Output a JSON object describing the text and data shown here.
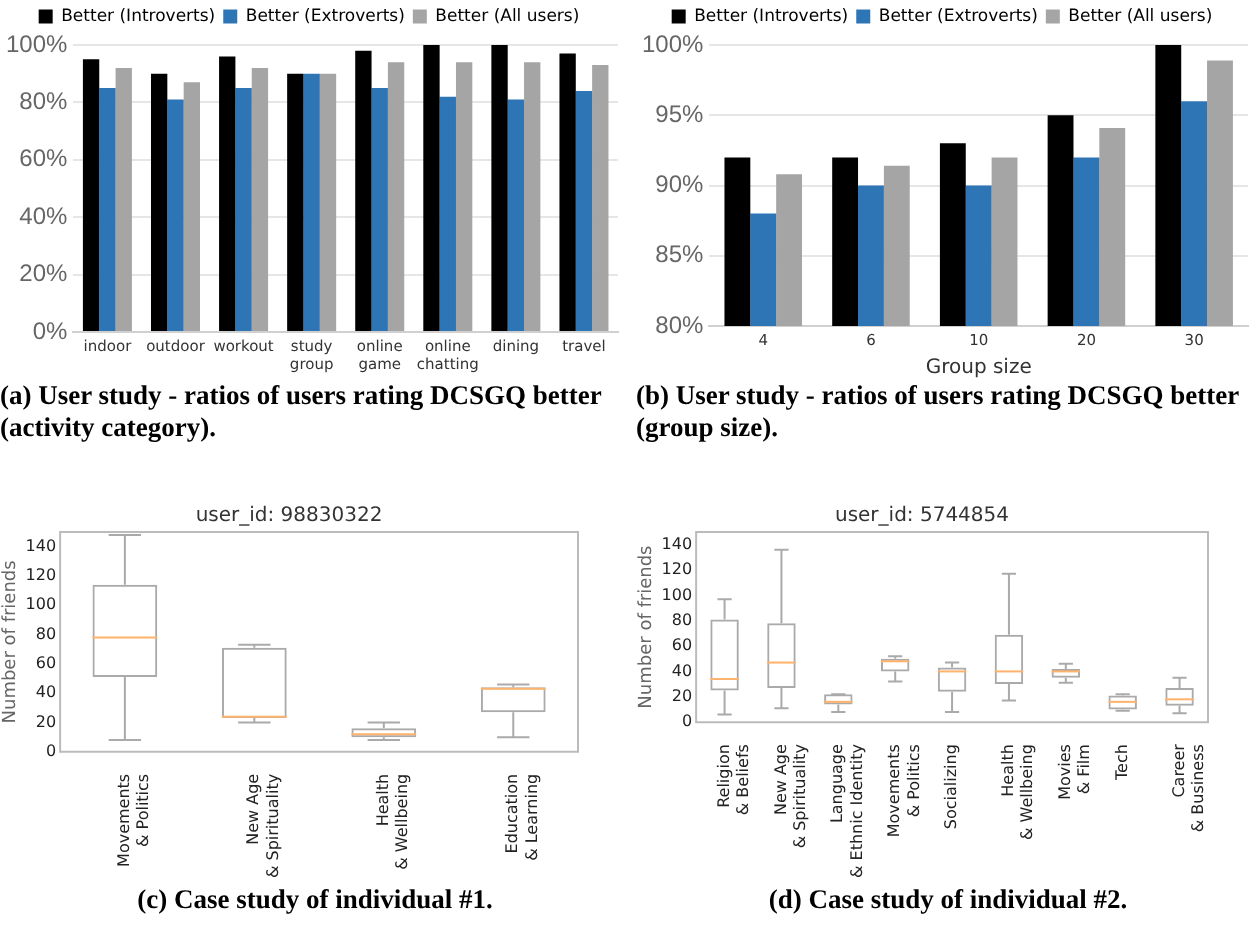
{
  "chart_data": [
    {
      "type": "bar",
      "categories": [
        "indoor",
        "outdoor",
        "workout",
        "study\ngroup",
        "online\ngame",
        "online\nchatting",
        "dining",
        "travel"
      ],
      "series": [
        {
          "name": "Better (Introverts)",
          "color": "#000000",
          "values": [
            95,
            90,
            96,
            90,
            98,
            100,
            100,
            97
          ]
        },
        {
          "name": "Better (Extroverts)",
          "color": "#2e75b6",
          "values": [
            85,
            81,
            85,
            90,
            85,
            82,
            81,
            84
          ]
        },
        {
          "name": "Better (All users)",
          "color": "#a5a5a5",
          "values": [
            92,
            87,
            92,
            90,
            94,
            94,
            94,
            93
          ]
        }
      ],
      "ylim": [
        0,
        100
      ],
      "yticks": [
        {
          "value": 0,
          "label": "0%"
        },
        {
          "value": 20,
          "label": "20%"
        },
        {
          "value": 40,
          "label": "40%"
        },
        {
          "value": 60,
          "label": "60%"
        },
        {
          "value": 80,
          "label": "80%"
        },
        {
          "value": 100,
          "label": "100%"
        }
      ],
      "grid": "y",
      "legend": "top",
      "annotations": [
        "(a) User study - ratios of users rating DCSGQ better (activity category)."
      ]
    },
    {
      "type": "bar",
      "categories": [
        "4",
        "6",
        "10",
        "20",
        "30"
      ],
      "xlabel": "Group size",
      "series": [
        {
          "name": "Better (Introverts)",
          "color": "#000000",
          "values": [
            92,
            92,
            93,
            95,
            100
          ]
        },
        {
          "name": "Better (Extroverts)",
          "color": "#2e75b6",
          "values": [
            88,
            90,
            90,
            92,
            96
          ]
        },
        {
          "name": "Better (All users)",
          "color": "#a5a5a5",
          "values": [
            90.8,
            91.4,
            92,
            94.1,
            98.9
          ]
        }
      ],
      "ylim": [
        80,
        100
      ],
      "yticks": [
        {
          "value": 80,
          "label": "80%"
        },
        {
          "value": 85,
          "label": "85%"
        },
        {
          "value": 90,
          "label": "90%"
        },
        {
          "value": 95,
          "label": "95%"
        },
        {
          "value": 100,
          "label": "100%"
        }
      ],
      "grid": "y",
      "legend": "top",
      "annotations": [
        "(b) User study - ratios of users rating DCSGQ better (group size)."
      ]
    },
    {
      "type": "box",
      "title": "user_id: 98830322",
      "ylabel": "Number of friends",
      "categories": [
        "Movements\n& Politics",
        "New Age\n& Spirituality",
        "Health\n& Wellbeing",
        "Education\n& Learning"
      ],
      "series": [
        {
          "color": "#aaaaaa",
          "boxes": [
            {
              "low": 8,
              "q1": 51,
              "median": 78,
              "q3": 114,
              "high": 148
            },
            {
              "low": 20,
              "q1": 23,
              "median": 24,
              "q3": 71,
              "high": 73
            },
            {
              "low": 8,
              "q1": 10,
              "median": 12,
              "q3": 16,
              "high": 20
            },
            {
              "low": 10,
              "q1": 27,
              "median": 43,
              "q3": 44,
              "high": 46
            }
          ]
        }
      ],
      "ylim": [
        0,
        150
      ],
      "yticks": [
        0,
        20,
        40,
        60,
        80,
        100,
        120,
        140
      ],
      "grid": false,
      "annotations": [
        "(c) Case study of individual #1."
      ]
    },
    {
      "type": "box",
      "title": "user_id: 5744854",
      "ylabel": "Number of friends",
      "categories": [
        "Religion\n& Beliefs",
        "New Age\n& Spirituality",
        "Language\n& Ethnic Identity",
        "Movements\n& Politics",
        "Socializing",
        "Health\n& Wellbeing",
        "Movies\n& Film",
        "Tech",
        "Career\n& Business"
      ],
      "series": [
        {
          "color": "#aaaaaa",
          "boxes": [
            {
              "low": 6,
              "q1": 25,
              "median": 34,
              "q3": 81,
              "high": 97
            },
            {
              "low": 11,
              "q1": 27,
              "median": 47,
              "q3": 78,
              "high": 136
            },
            {
              "low": 8,
              "q1": 14,
              "median": 16,
              "q3": 22,
              "high": 22
            },
            {
              "low": 32,
              "q1": 40,
              "median": 48,
              "q3": 50,
              "high": 52
            },
            {
              "low": 8,
              "q1": 24,
              "median": 40,
              "q3": 43,
              "high": 47
            },
            {
              "low": 17,
              "q1": 30,
              "median": 40,
              "q3": 69,
              "high": 117
            },
            {
              "low": 31,
              "q1": 35,
              "median": 40,
              "q3": 42,
              "high": 46
            },
            {
              "low": 9,
              "q1": 10,
              "median": 16,
              "q3": 21,
              "high": 22
            },
            {
              "low": 7,
              "q1": 13,
              "median": 18,
              "q3": 27,
              "high": 35
            }
          ]
        }
      ],
      "ylim": [
        0,
        150
      ],
      "yticks": [
        0,
        20,
        40,
        60,
        80,
        100,
        120,
        140
      ],
      "grid": false,
      "annotations": [
        "(d) Case study of individual #2."
      ]
    }
  ]
}
